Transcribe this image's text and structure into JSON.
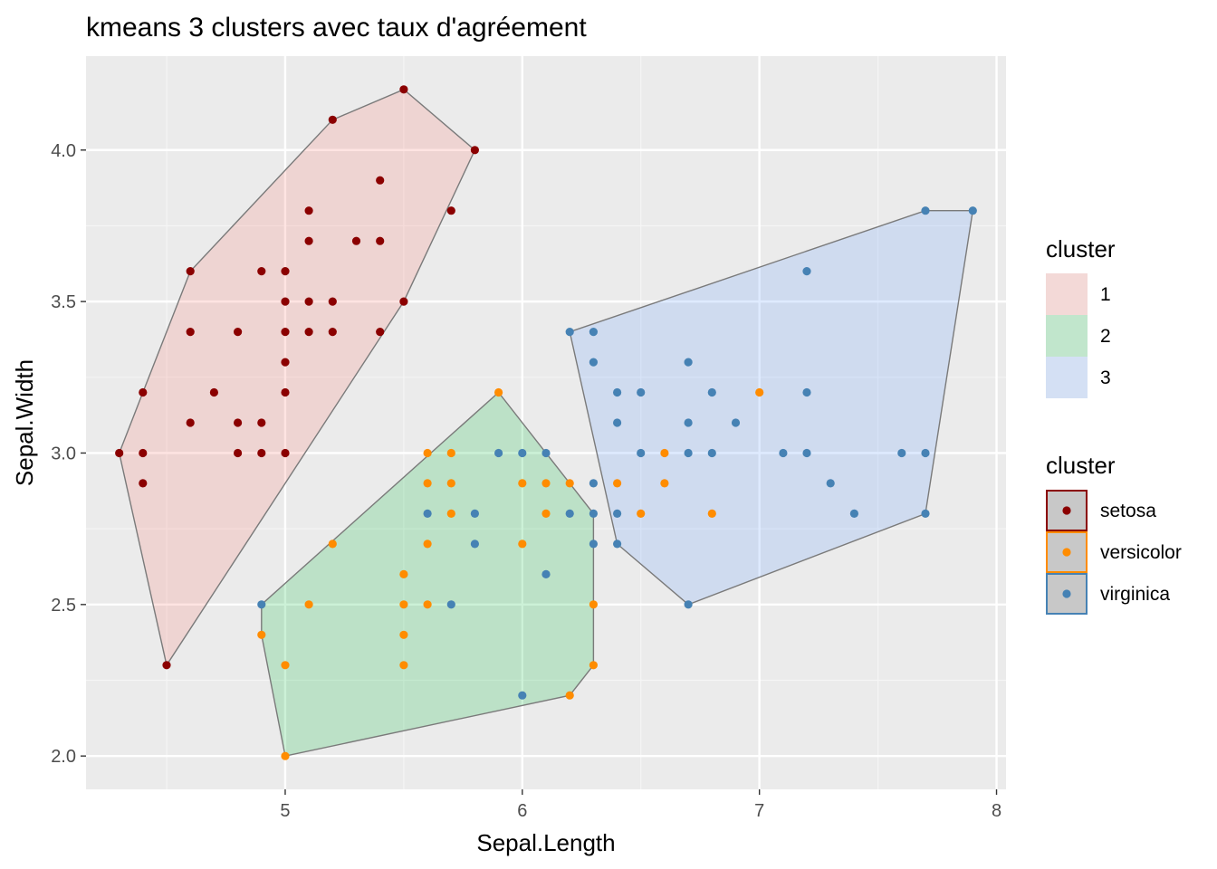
{
  "chart_data": {
    "type": "scatter",
    "title": "kmeans 3 clusters avec taux d'agréement",
    "xlabel": "Sepal.Length",
    "ylabel": "Sepal.Width",
    "xlim": [
      4.16,
      8.04
    ],
    "ylim": [
      1.89,
      4.31
    ],
    "x_ticks": [
      5,
      6,
      7,
      8
    ],
    "x_minor": [
      4.5,
      5.5,
      6.5,
      7.5
    ],
    "y_ticks": [
      2.0,
      2.5,
      3.0,
      3.5,
      4.0
    ],
    "y_tick_labels": [
      "2.0",
      "2.5",
      "3.0",
      "3.5",
      "4.0"
    ],
    "y_minor": [
      2.25,
      2.75,
      3.25,
      3.75
    ],
    "grid": true,
    "legend_position": "right",
    "hulls": [
      {
        "cluster": "1",
        "fill": "#f8766d",
        "points": [
          [
            4.3,
            3.0
          ],
          [
            4.5,
            2.3
          ],
          [
            5.5,
            3.5
          ],
          [
            5.8,
            4.0
          ],
          [
            5.5,
            4.2
          ],
          [
            5.2,
            4.1
          ],
          [
            4.6,
            3.6
          ],
          [
            4.4,
            3.2
          ]
        ]
      },
      {
        "cluster": "2",
        "fill": "#00ba38",
        "points": [
          [
            4.9,
            2.5
          ],
          [
            4.9,
            2.4
          ],
          [
            5.0,
            2.0
          ],
          [
            6.2,
            2.2
          ],
          [
            6.3,
            2.3
          ],
          [
            6.3,
            2.8
          ],
          [
            5.9,
            3.2
          ]
        ]
      },
      {
        "cluster": "3",
        "fill": "#619cff",
        "points": [
          [
            6.2,
            3.4
          ],
          [
            6.4,
            2.7
          ],
          [
            6.7,
            2.5
          ],
          [
            7.7,
            2.8
          ],
          [
            7.9,
            3.8
          ],
          [
            7.7,
            3.8
          ]
        ]
      }
    ],
    "series": [
      {
        "name": "setosa",
        "color": "#8b0000",
        "points": [
          [
            4.3,
            3.0
          ],
          [
            4.4,
            2.9
          ],
          [
            4.4,
            3.0
          ],
          [
            4.4,
            3.2
          ],
          [
            4.5,
            2.3
          ],
          [
            4.6,
            3.1
          ],
          [
            4.6,
            3.4
          ],
          [
            4.6,
            3.6
          ],
          [
            4.7,
            3.2
          ],
          [
            4.8,
            3.0
          ],
          [
            4.8,
            3.1
          ],
          [
            4.8,
            3.4
          ],
          [
            4.9,
            3.0
          ],
          [
            4.9,
            3.1
          ],
          [
            4.9,
            3.6
          ],
          [
            5.0,
            3.0
          ],
          [
            5.0,
            3.2
          ],
          [
            5.0,
            3.3
          ],
          [
            5.0,
            3.4
          ],
          [
            5.0,
            3.5
          ],
          [
            5.0,
            3.6
          ],
          [
            5.1,
            3.4
          ],
          [
            5.1,
            3.5
          ],
          [
            5.1,
            3.7
          ],
          [
            5.1,
            3.8
          ],
          [
            5.2,
            3.4
          ],
          [
            5.2,
            3.5
          ],
          [
            5.2,
            4.1
          ],
          [
            5.3,
            3.7
          ],
          [
            5.4,
            3.4
          ],
          [
            5.4,
            3.7
          ],
          [
            5.4,
            3.9
          ],
          [
            5.5,
            3.5
          ],
          [
            5.5,
            4.2
          ],
          [
            5.7,
            3.8
          ],
          [
            5.8,
            4.0
          ]
        ]
      },
      {
        "name": "versicolor",
        "color": "#ff8c00",
        "points": [
          [
            4.9,
            2.4
          ],
          [
            5.0,
            2.0
          ],
          [
            5.0,
            2.3
          ],
          [
            5.1,
            2.5
          ],
          [
            5.2,
            2.7
          ],
          [
            5.5,
            2.3
          ],
          [
            5.5,
            2.4
          ],
          [
            5.5,
            2.5
          ],
          [
            5.5,
            2.6
          ],
          [
            5.6,
            2.5
          ],
          [
            5.6,
            2.7
          ],
          [
            5.6,
            2.9
          ],
          [
            5.6,
            3.0
          ],
          [
            5.7,
            2.8
          ],
          [
            5.7,
            2.9
          ],
          [
            5.7,
            3.0
          ],
          [
            5.9,
            3.2
          ],
          [
            6.0,
            2.7
          ],
          [
            6.0,
            2.9
          ],
          [
            6.1,
            2.8
          ],
          [
            6.1,
            2.9
          ],
          [
            6.2,
            2.2
          ],
          [
            6.2,
            2.9
          ],
          [
            6.3,
            2.3
          ],
          [
            6.3,
            2.5
          ],
          [
            6.4,
            2.9
          ],
          [
            6.5,
            2.8
          ],
          [
            6.6,
            2.9
          ],
          [
            6.6,
            3.0
          ],
          [
            6.8,
            2.8
          ],
          [
            7.0,
            3.2
          ]
        ]
      },
      {
        "name": "virginica",
        "color": "#4682b4",
        "points": [
          [
            4.9,
            2.5
          ],
          [
            5.6,
            2.8
          ],
          [
            5.7,
            2.5
          ],
          [
            5.8,
            2.7
          ],
          [
            5.8,
            2.8
          ],
          [
            5.9,
            3.0
          ],
          [
            6.0,
            2.2
          ],
          [
            6.0,
            3.0
          ],
          [
            6.1,
            2.6
          ],
          [
            6.1,
            3.0
          ],
          [
            6.2,
            2.8
          ],
          [
            6.2,
            3.4
          ],
          [
            6.3,
            2.7
          ],
          [
            6.3,
            2.8
          ],
          [
            6.3,
            2.9
          ],
          [
            6.3,
            3.3
          ],
          [
            6.3,
            3.4
          ],
          [
            6.4,
            2.7
          ],
          [
            6.4,
            2.8
          ],
          [
            6.4,
            3.1
          ],
          [
            6.4,
            3.2
          ],
          [
            6.5,
            3.0
          ],
          [
            6.5,
            3.2
          ],
          [
            6.7,
            2.5
          ],
          [
            6.7,
            3.0
          ],
          [
            6.7,
            3.1
          ],
          [
            6.7,
            3.3
          ],
          [
            6.8,
            3.0
          ],
          [
            6.8,
            3.2
          ],
          [
            6.9,
            3.1
          ],
          [
            7.1,
            3.0
          ],
          [
            7.2,
            3.0
          ],
          [
            7.2,
            3.2
          ],
          [
            7.2,
            3.6
          ],
          [
            7.3,
            2.9
          ],
          [
            7.4,
            2.8
          ],
          [
            7.6,
            3.0
          ],
          [
            7.7,
            2.8
          ],
          [
            7.7,
            3.0
          ],
          [
            7.7,
            3.8
          ],
          [
            7.9,
            3.8
          ]
        ]
      }
    ],
    "legend_fill": {
      "title": "cluster",
      "entries": [
        {
          "label": "1",
          "color": "#f8766d"
        },
        {
          "label": "2",
          "color": "#00ba38"
        },
        {
          "label": "3",
          "color": "#619cff"
        }
      ]
    },
    "legend_color": {
      "title": "cluster",
      "entries": [
        {
          "label": "setosa",
          "color": "#8b0000"
        },
        {
          "label": "versicolor",
          "color": "#ff8c00"
        },
        {
          "label": "virginica",
          "color": "#4682b4"
        }
      ]
    }
  }
}
